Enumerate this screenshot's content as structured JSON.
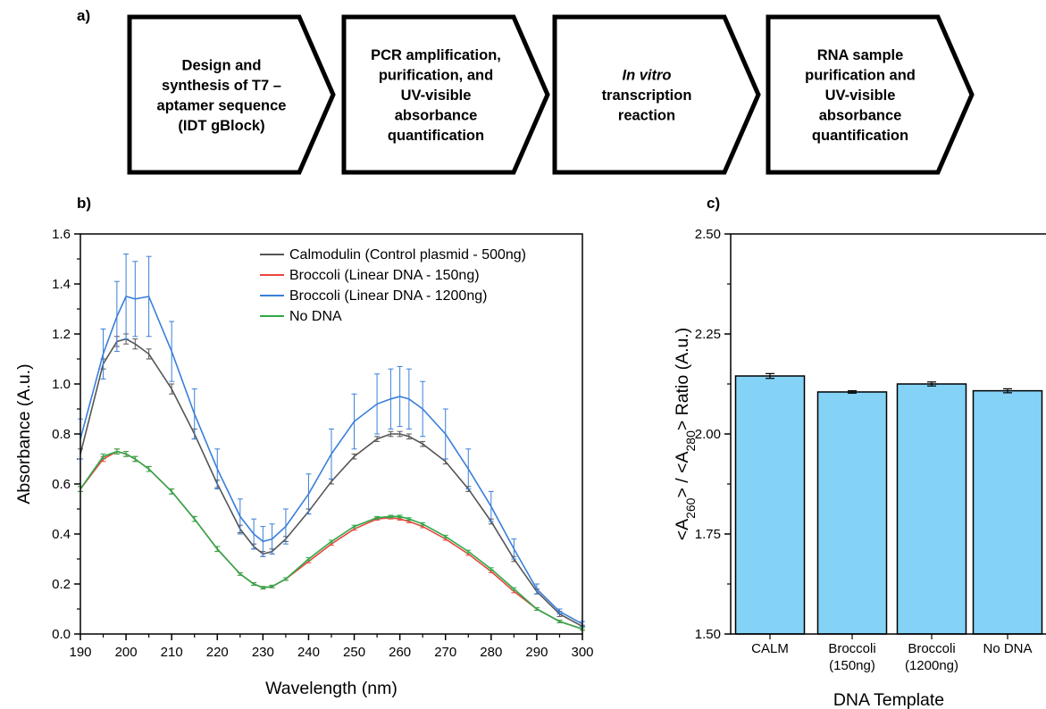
{
  "panel_labels": {
    "a": "a)",
    "b": "b)",
    "c": "c)"
  },
  "flow_steps": [
    {
      "lines": [
        {
          "text": "Design and"
        },
        {
          "text": "synthesis of T7 –"
        },
        {
          "text": "aptamer sequence"
        },
        {
          "text": "(IDT gBlock)"
        }
      ]
    },
    {
      "lines": [
        {
          "text": "PCR amplification,"
        },
        {
          "text": "purification, and"
        },
        {
          "text": "UV-visible"
        },
        {
          "text": "absorbance"
        },
        {
          "text": "quantification"
        }
      ]
    },
    {
      "lines": [
        {
          "text": "In vitro",
          "italic": true
        },
        {
          "text": "transcription"
        },
        {
          "text": "reaction"
        }
      ]
    },
    {
      "lines": [
        {
          "text": "RNA sample"
        },
        {
          "text": "purification and"
        },
        {
          "text": "UV-visible"
        },
        {
          "text": "absorbance"
        },
        {
          "text": "quantification"
        }
      ]
    }
  ],
  "chart_data": [
    {
      "type": "line",
      "panel": "b)",
      "xlabel": "Wavelength (nm)",
      "ylabel": "Absorbance (A.u.)",
      "xlim": [
        190,
        300
      ],
      "ylim": [
        0.0,
        1.6
      ],
      "xticks": [
        190,
        200,
        210,
        220,
        230,
        240,
        250,
        260,
        270,
        280,
        290,
        300
      ],
      "yticks": [
        0.0,
        0.2,
        0.4,
        0.6,
        0.8,
        1.0,
        1.2,
        1.4,
        1.6
      ],
      "ytick_labels": [
        "0.0",
        "0.2",
        "0.4",
        "0.6",
        "0.8",
        "1.0",
        "1.2",
        "1.4",
        "1.6"
      ],
      "legend_position": "top-right",
      "x": [
        190,
        195,
        198,
        200,
        202,
        205,
        210,
        215,
        220,
        225,
        228,
        230,
        232,
        235,
        240,
        245,
        250,
        255,
        258,
        260,
        262,
        265,
        270,
        275,
        280,
        285,
        290,
        295,
        300
      ],
      "series": [
        {
          "name": "Calmodulin (Control plasmid - 500ng)",
          "color": "#555555",
          "y": [
            0.72,
            1.08,
            1.17,
            1.18,
            1.16,
            1.12,
            0.98,
            0.8,
            0.6,
            0.42,
            0.35,
            0.32,
            0.33,
            0.38,
            0.49,
            0.61,
            0.71,
            0.78,
            0.8,
            0.8,
            0.79,
            0.76,
            0.69,
            0.58,
            0.45,
            0.3,
            0.17,
            0.08,
            0.03
          ],
          "error": [
            0.02,
            0.02,
            0.02,
            0.02,
            0.02,
            0.02,
            0.02,
            0.02,
            0.015,
            0.015,
            0.01,
            0.01,
            0.01,
            0.01,
            0.01,
            0.01,
            0.01,
            0.01,
            0.01,
            0.01,
            0.01,
            0.01,
            0.01,
            0.01,
            0.01,
            0.01,
            0.01,
            0.01,
            0.005
          ]
        },
        {
          "name": "Broccoli (Linear DNA - 150ng)",
          "color": "#e8473e",
          "y": [
            0.58,
            0.7,
            0.73,
            0.72,
            0.7,
            0.66,
            0.57,
            0.46,
            0.34,
            0.24,
            0.2,
            0.185,
            0.19,
            0.22,
            0.29,
            0.36,
            0.42,
            0.46,
            0.465,
            0.46,
            0.45,
            0.43,
            0.38,
            0.32,
            0.25,
            0.17,
            0.1,
            0.05,
            0.02
          ],
          "error": [
            0.01,
            0.01,
            0.01,
            0.01,
            0.01,
            0.01,
            0.01,
            0.01,
            0.01,
            0.005,
            0.005,
            0.005,
            0.005,
            0.005,
            0.005,
            0.005,
            0.005,
            0.005,
            0.005,
            0.005,
            0.005,
            0.005,
            0.005,
            0.005,
            0.005,
            0.005,
            0.005,
            0.005,
            0.005
          ]
        },
        {
          "name": "Broccoli (Linear DNA - 1200ng)",
          "color": "#3a7fd9",
          "y": [
            0.78,
            1.12,
            1.27,
            1.35,
            1.34,
            1.35,
            1.13,
            0.88,
            0.66,
            0.47,
            0.4,
            0.37,
            0.38,
            0.43,
            0.56,
            0.72,
            0.85,
            0.92,
            0.94,
            0.95,
            0.94,
            0.9,
            0.8,
            0.66,
            0.51,
            0.34,
            0.18,
            0.09,
            0.04
          ],
          "error": [
            0.08,
            0.1,
            0.14,
            0.17,
            0.15,
            0.16,
            0.12,
            0.1,
            0.08,
            0.07,
            0.06,
            0.06,
            0.06,
            0.07,
            0.08,
            0.1,
            0.11,
            0.12,
            0.12,
            0.12,
            0.12,
            0.11,
            0.1,
            0.08,
            0.06,
            0.04,
            0.02,
            0.01,
            0.01
          ]
        },
        {
          "name": "No DNA",
          "color": "#2ea84a",
          "y": [
            0.58,
            0.71,
            0.73,
            0.72,
            0.7,
            0.66,
            0.57,
            0.46,
            0.34,
            0.24,
            0.2,
            0.185,
            0.19,
            0.22,
            0.3,
            0.37,
            0.43,
            0.465,
            0.47,
            0.47,
            0.46,
            0.44,
            0.39,
            0.33,
            0.26,
            0.18,
            0.1,
            0.05,
            0.02
          ],
          "error": [
            0.01,
            0.01,
            0.01,
            0.01,
            0.01,
            0.01,
            0.01,
            0.01,
            0.01,
            0.005,
            0.005,
            0.005,
            0.005,
            0.005,
            0.005,
            0.005,
            0.005,
            0.005,
            0.005,
            0.005,
            0.005,
            0.005,
            0.005,
            0.005,
            0.005,
            0.005,
            0.005,
            0.005,
            0.005
          ]
        }
      ]
    },
    {
      "type": "bar",
      "panel": "c)",
      "xlabel": "DNA Template",
      "ylabel": {
        "parts": [
          {
            "text": "<A"
          },
          {
            "text": "260",
            "sub": true
          },
          {
            "text": "> / <A"
          },
          {
            "text": "280",
            "sub": true
          },
          {
            "text": "> Ratio (A.u.)"
          }
        ]
      },
      "ylim": [
        1.5,
        2.5
      ],
      "yticks": [
        1.5,
        1.75,
        2.0,
        2.25,
        2.5
      ],
      "ytick_labels": [
        "1.50",
        "1.75",
        "2.00",
        "2.25",
        "2.50"
      ],
      "categories": [
        [
          "CALM"
        ],
        [
          "Broccoli",
          "(150ng)"
        ],
        [
          "Broccoli",
          "(1200ng)"
        ],
        [
          "No DNA"
        ]
      ],
      "values": [
        2.145,
        2.105,
        2.125,
        2.108
      ],
      "errors": [
        0.006,
        0.003,
        0.005,
        0.005
      ],
      "bar_color": "#84d2f6"
    }
  ]
}
